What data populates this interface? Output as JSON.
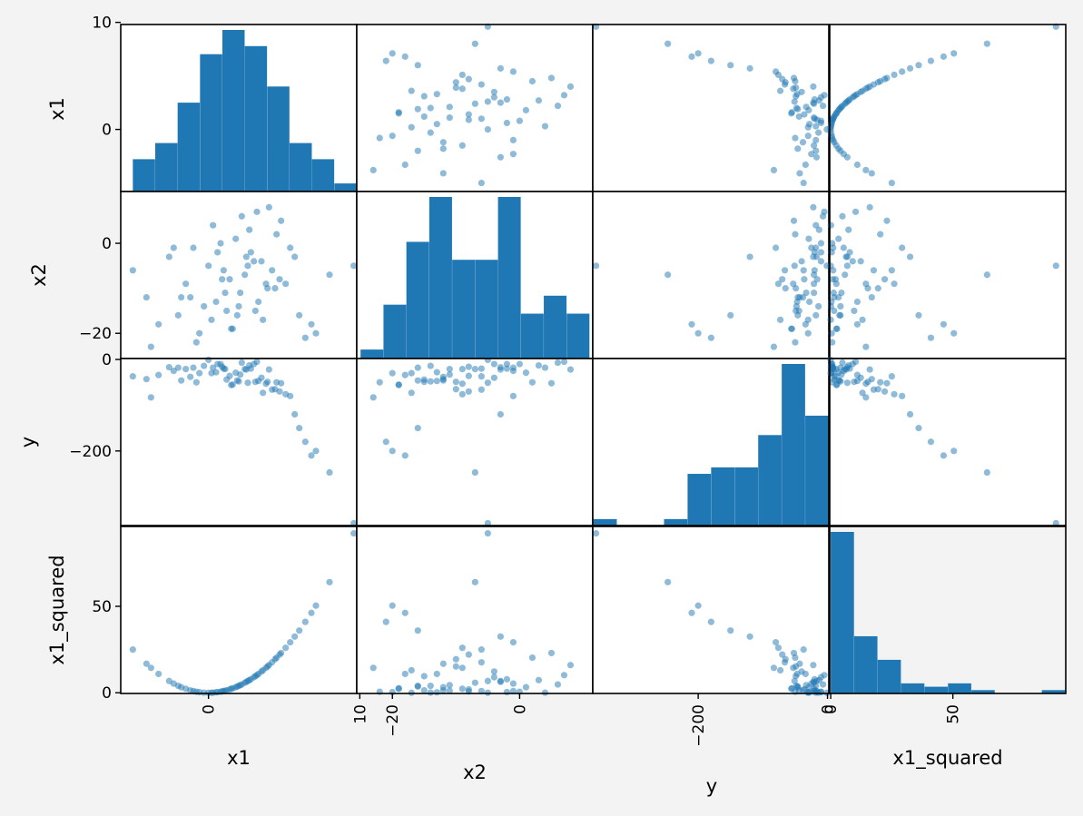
{
  "chart_data": {
    "type": "scatter_matrix",
    "variables": [
      "x1",
      "x2",
      "y",
      "x1_squared"
    ],
    "grid": false,
    "colors": {
      "marker": "#1f77b4",
      "diagonal_histogram": "#1f77b4",
      "figure_background": "#f3f3f3",
      "panel_background": "#ffffff"
    },
    "ranges": {
      "x1": [
        -5.8,
        9.8
      ],
      "x2": [
        -25.6,
        11.5
      ],
      "y": [
        -363,
        2
      ],
      "x1_squared": [
        -0.4,
        96.2
      ]
    },
    "ticks": {
      "x1": [
        0,
        10
      ],
      "x2": [
        -20,
        0
      ],
      "y": [
        -200,
        0
      ],
      "x1_squared": [
        0,
        50
      ]
    },
    "tick_labels": {
      "x1": [
        "0",
        "10"
      ],
      "x2": [
        "−20",
        "0"
      ],
      "y": [
        "−200",
        "0"
      ],
      "x1_squared": [
        "0",
        "50"
      ]
    },
    "row_tick_labels": [
      [
        "10",
        "0"
      ],
      [
        "0",
        "−20"
      ],
      [
        "0",
        "−200"
      ],
      [
        "50",
        "0"
      ]
    ],
    "axis_labels": {
      "x1": "x1",
      "x2": "x2",
      "y": "y",
      "x1_squared": "x1_squared"
    },
    "histograms": {
      "x1": {
        "counts": [
          4,
          6,
          11,
          17,
          20,
          18,
          13,
          6,
          4,
          1
        ],
        "range": [
          -5.0,
          9.8
        ]
      },
      "x2": {
        "counts": [
          1,
          6,
          13,
          18,
          11,
          11,
          18,
          5,
          7,
          5
        ],
        "range": [
          -25.0,
          11.0
        ]
      },
      "y": {
        "counts": [
          1,
          0,
          0,
          1,
          8,
          9,
          9,
          14,
          25,
          17
        ],
        "range": [
          -362,
          2
        ]
      },
      "x1_squared": {
        "counts": [
          48,
          17,
          10,
          3,
          2,
          3,
          1,
          0,
          0,
          1
        ],
        "range": [
          0,
          96
        ]
      }
    },
    "samples": {
      "x1": [
        -5.0,
        -4.1,
        -3.3,
        -2.6,
        -2.0,
        -1.5,
        -1.0,
        -0.6,
        -0.3,
        0.0,
        0.3,
        0.6,
        0.9,
        1.2,
        1.5,
        1.8,
        2.1,
        2.4,
        2.7,
        3.0,
        3.3,
        3.6,
        3.9,
        4.2,
        4.5,
        4.8,
        5.1,
        5.4,
        5.7,
        6.0,
        6.4,
        6.8,
        7.1,
        8.0,
        9.6,
        -3.8,
        -1.2,
        0.8,
        1.1,
        1.4,
        2.0,
        2.2,
        2.8,
        3.1,
        3.5,
        4.0,
        4.4,
        0.2,
        0.5,
        1.0,
        1.6,
        2.5,
        3.2,
        3.8,
        -0.8,
        -2.3,
        -1.8,
        1.9,
        2.6,
        4.7
      ],
      "x2": [
        -6.0,
        -12.0,
        -18.0,
        -3.0,
        -16.0,
        -9.0,
        -1.0,
        -20.0,
        -14.0,
        -5.0,
        4.0,
        -2.0,
        -8.0,
        -15.0,
        -19.0,
        1.0,
        -11.0,
        -7.0,
        3.0,
        -4.0,
        -13.0,
        -17.0,
        -10.0,
        -6.0,
        2.0,
        5.0,
        -9.0,
        -1.0,
        -3.0,
        -16.0,
        -21.0,
        -18.0,
        -20.0,
        -7.0,
        -5.0,
        -23.0,
        -12.0,
        0.0,
        -11.0,
        -8.0,
        -14.0,
        6.0,
        -2.0,
        -15.0,
        -4.0,
        8.0,
        -10.0,
        -17.0,
        -13.0,
        -6.0,
        -19.0,
        -3.0,
        7.0,
        -9.0,
        -22.0,
        -1.0,
        -12.0,
        -16.0,
        -5.0,
        -8.0
      ],
      "y": [
        -37.0,
        -43.0,
        -34.0,
        -17.0,
        -18.0,
        -21.0,
        -18.0,
        -30.0,
        -14.0,
        -1.0,
        -18.0,
        -10.0,
        -16.0,
        -44.0,
        -56.0,
        -29.0,
        -33.0,
        -21.0,
        -13.0,
        -10.0,
        -47.0,
        -73.0,
        -49.0,
        -66.0,
        -50.0,
        -52.0,
        -76.0,
        -80.0,
        -120.0,
        -150.0,
        -180.0,
        -210.0,
        -200.0,
        -247.0,
        -358.0,
        -83.0,
        -38.0,
        -10.0,
        -21.0,
        -36.0,
        -48.0,
        -7.0,
        -20.0,
        -49.0,
        -40.0,
        -22.0,
        -65.0,
        -30.0,
        -28.0,
        -20.0,
        -55.0,
        -22.0,
        -5.0,
        -53.0,
        -50.0,
        -25.0,
        -46.0,
        -46.0,
        -51.0,
        -70.0
      ],
      "x1_squared": [
        25.0,
        16.8,
        10.9,
        6.8,
        4.0,
        2.3,
        1.0,
        0.4,
        0.1,
        0.0,
        0.1,
        0.4,
        0.8,
        1.4,
        2.3,
        3.2,
        4.4,
        5.8,
        7.3,
        9.0,
        10.9,
        13.0,
        15.2,
        17.6,
        20.3,
        23.0,
        26.0,
        29.2,
        32.5,
        36.0,
        41.0,
        46.2,
        50.4,
        64.0,
        92.2,
        14.4,
        1.4,
        0.6,
        1.2,
        2.0,
        4.0,
        4.8,
        7.8,
        9.6,
        12.3,
        16.0,
        19.4,
        0.0,
        0.3,
        1.0,
        2.6,
        6.3,
        10.2,
        14.4,
        0.6,
        5.3,
        3.2,
        3.6,
        6.8,
        22.1
      ]
    }
  }
}
